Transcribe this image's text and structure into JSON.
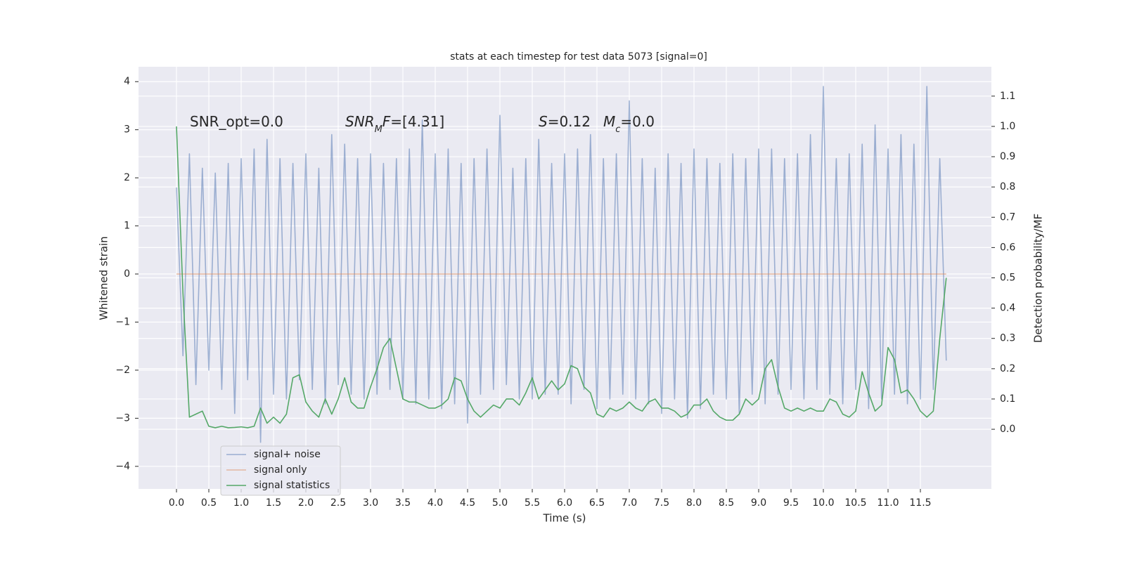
{
  "chart_data": {
    "type": "line",
    "title": "stats at each timestep for test data 5073 [signal=0]",
    "xlabel": "Time (s)",
    "ylabel": "Whitened strain",
    "y2label": "Detection probability/MF",
    "xlim": [
      -0.587,
      12.598
    ],
    "ylim": [
      -4.47,
      4.31
    ],
    "y2lim": [
      -0.197,
      1.197
    ],
    "xticks": [
      {
        "value": 0,
        "label": "0.0"
      },
      0.5,
      {
        "value": 1,
        "label": "1.0"
      },
      1.5,
      {
        "value": 2,
        "label": "2.0"
      },
      2.5,
      {
        "value": 3,
        "label": "3.0"
      },
      3.5,
      {
        "value": 4,
        "label": "4.0"
      },
      4.5,
      {
        "value": 5,
        "label": "5.0"
      },
      5.5,
      {
        "value": 6,
        "label": "6.0"
      },
      6.5,
      {
        "value": 7,
        "label": "7.0"
      },
      7.5,
      {
        "value": 8,
        "label": "8.0"
      },
      8.5,
      {
        "value": 9,
        "label": "9.0"
      },
      9.5,
      {
        "value": 10,
        "label": "10.0"
      },
      10.5,
      {
        "value": 11,
        "label": "11.0"
      },
      11.5
    ],
    "yticks": [
      {
        "value": -4,
        "label": "−4"
      },
      {
        "value": -3,
        "label": "−3"
      },
      {
        "value": -2,
        "label": "−2"
      },
      {
        "value": -1,
        "label": "−1"
      },
      0,
      1,
      2,
      3,
      4
    ],
    "y2ticks": [
      {
        "value": 0,
        "label": "0.0"
      },
      0.1,
      0.2,
      0.3,
      0.4,
      0.5,
      0.6,
      0.7,
      0.8,
      0.9,
      {
        "value": 1,
        "label": "1.0"
      },
      1.1
    ],
    "grid": true,
    "background": "#eaeaf2",
    "legend": "lower left",
    "annotations": [
      [
        {
          "text": "SNR_opt=0.0"
        }
      ],
      [
        {
          "text": "SNR",
          "italic": true
        },
        {
          "text": "M",
          "italic": true,
          "sub": true
        },
        {
          "text": "F",
          "italic": true
        },
        {
          "text": "=[4.31]"
        }
      ],
      [
        {
          "text": "S",
          "italic": true
        },
        {
          "text": "=0.12"
        }
      ],
      [
        {
          "text": "M",
          "italic": true
        },
        {
          "text": "c",
          "italic": true,
          "sub": true
        },
        {
          "text": "=0.0"
        }
      ]
    ],
    "x": [
      0,
      0.1,
      0.2,
      0.3,
      0.4,
      0.5,
      0.6,
      0.7,
      0.8,
      0.9,
      1,
      1.1,
      1.2,
      1.3,
      1.4,
      1.5,
      1.6,
      1.7,
      1.8,
      1.9,
      2,
      2.1,
      2.2,
      2.3,
      2.4,
      2.5,
      2.6,
      2.7,
      2.8,
      2.9,
      3,
      3.1,
      3.2,
      3.3,
      3.4,
      3.5,
      3.6,
      3.7,
      3.8,
      3.9,
      4,
      4.1,
      4.2,
      4.3,
      4.4,
      4.5,
      4.6,
      4.7,
      4.8,
      4.9,
      5,
      5.1,
      5.2,
      5.3,
      5.4,
      5.5,
      5.6,
      5.7,
      5.8,
      5.9,
      6,
      6.1,
      6.2,
      6.3,
      6.4,
      6.5,
      6.6,
      6.7,
      6.8,
      6.9,
      7,
      7.1,
      7.2,
      7.3,
      7.4,
      7.5,
      7.6,
      7.7,
      7.8,
      7.9,
      8,
      8.1,
      8.2,
      8.3,
      8.4,
      8.5,
      8.6,
      8.7,
      8.8,
      8.9,
      9,
      9.1,
      9.2,
      9.3,
      9.4,
      9.5,
      9.6,
      9.7,
      9.8,
      9.9,
      10,
      10.1,
      10.2,
      10.3,
      10.4,
      10.5,
      10.6,
      10.7,
      10.8,
      10.9,
      11,
      11.1,
      11.2,
      11.3,
      11.4,
      11.5,
      11.6,
      11.7,
      11.8,
      11.9
    ],
    "series": [
      {
        "name": "signal+ noise",
        "color": "#4c72b0",
        "opacity": 0.5,
        "values": [
          1.8,
          -1.7,
          2.5,
          -2.3,
          2.2,
          -2.0,
          2.1,
          -2.4,
          2.3,
          -2.9,
          2.4,
          -2.2,
          2.6,
          -3.5,
          2.8,
          -2.5,
          2.4,
          -2.6,
          2.3,
          -2.2,
          2.5,
          -2.4,
          2.2,
          -2.7,
          2.9,
          -2.3,
          2.7,
          -2.5,
          2.4,
          -2.6,
          2.5,
          -2.5,
          2.3,
          -2.4,
          2.4,
          -2.6,
          2.6,
          -2.7,
          3.2,
          -2.6,
          2.5,
          -2.8,
          2.6,
          -2.7,
          2.3,
          -3.1,
          2.4,
          -2.5,
          2.6,
          -2.4,
          3.3,
          -2.3,
          2.2,
          -2.6,
          2.4,
          -2.6,
          2.8,
          -2.5,
          2.3,
          -2.5,
          2.5,
          -2.7,
          2.6,
          -2.4,
          2.9,
          -2.8,
          2.4,
          -2.6,
          2.5,
          -2.5,
          3.6,
          -2.6,
          2.4,
          -2.7,
          2.2,
          -2.9,
          2.5,
          -2.6,
          2.3,
          -3.0,
          2.6,
          -2.8,
          2.4,
          -2.5,
          2.3,
          -2.6,
          2.5,
          -2.9,
          2.4,
          -2.5,
          2.6,
          -2.7,
          2.6,
          -2.5,
          2.4,
          -2.4,
          2.5,
          -2.6,
          2.9,
          -2.4,
          3.9,
          -2.5,
          2.4,
          -2.7,
          2.5,
          -2.4,
          2.7,
          -2.8,
          3.1,
          -2.6,
          2.6,
          -2.5,
          2.9,
          -2.7,
          2.7,
          -2.6,
          3.9,
          -2.4,
          2.4,
          -1.8
        ]
      },
      {
        "name": "signal only",
        "color": "#dd8452",
        "opacity": 0.5,
        "x": [
          0,
          11.9
        ],
        "values": [
          0,
          0
        ]
      },
      {
        "name": "signal statistics",
        "color": "#55a868",
        "opacity": 1,
        "axis": "y2",
        "values": [
          1.0,
          0.45,
          0.04,
          0.05,
          0.06,
          0.01,
          0.005,
          0.01,
          0.005,
          0.006,
          0.008,
          0.005,
          0.01,
          0.07,
          0.02,
          0.04,
          0.02,
          0.05,
          0.17,
          0.18,
          0.09,
          0.06,
          0.04,
          0.1,
          0.05,
          0.1,
          0.17,
          0.09,
          0.07,
          0.07,
          0.14,
          0.2,
          0.27,
          0.3,
          0.2,
          0.1,
          0.09,
          0.09,
          0.08,
          0.07,
          0.07,
          0.08,
          0.1,
          0.17,
          0.16,
          0.1,
          0.06,
          0.04,
          0.06,
          0.08,
          0.07,
          0.1,
          0.1,
          0.08,
          0.12,
          0.17,
          0.1,
          0.13,
          0.16,
          0.13,
          0.15,
          0.21,
          0.2,
          0.14,
          0.12,
          0.05,
          0.04,
          0.07,
          0.06,
          0.07,
          0.09,
          0.07,
          0.06,
          0.09,
          0.1,
          0.07,
          0.07,
          0.06,
          0.04,
          0.05,
          0.08,
          0.08,
          0.1,
          0.06,
          0.04,
          0.03,
          0.03,
          0.05,
          0.1,
          0.08,
          0.1,
          0.2,
          0.23,
          0.14,
          0.07,
          0.06,
          0.07,
          0.06,
          0.07,
          0.06,
          0.06,
          0.1,
          0.09,
          0.05,
          0.04,
          0.06,
          0.19,
          0.12,
          0.06,
          0.08,
          0.27,
          0.23,
          0.12,
          0.13,
          0.1,
          0.06,
          0.04,
          0.06,
          0.3,
          0.5
        ]
      }
    ]
  }
}
